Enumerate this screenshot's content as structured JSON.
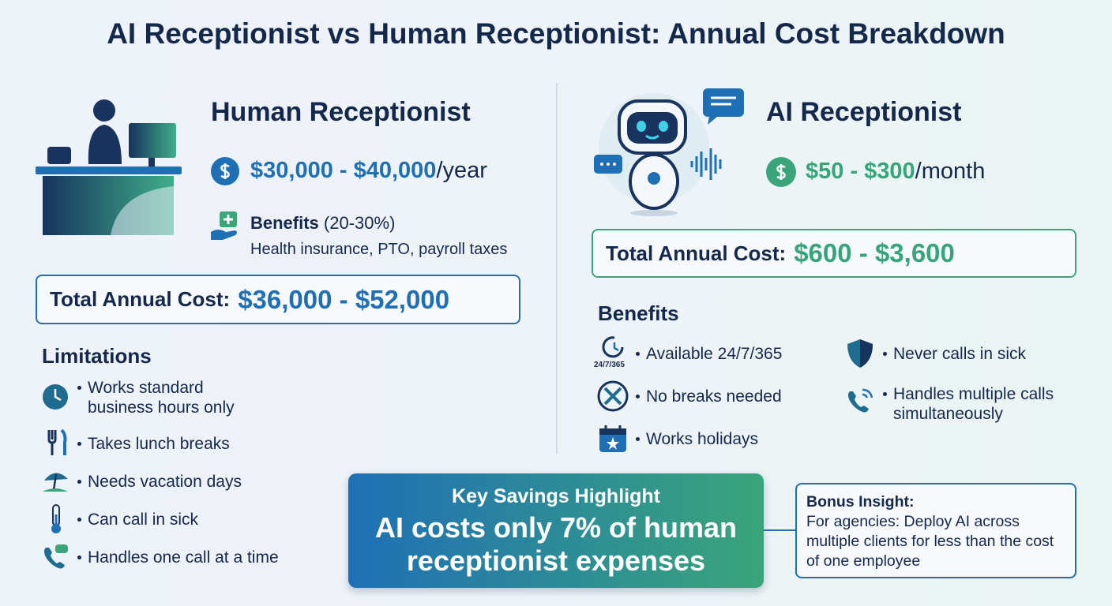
{
  "title": "AI Receptionist vs Human Receptionist: Annual Cost Breakdown",
  "human": {
    "heading": "Human Receptionist",
    "price": {
      "amount": "$30,000 - $40,000",
      "unit": "/year"
    },
    "benefits": {
      "label": "Benefits",
      "range": "(20-30%)",
      "detail": "Health insurance, PTO, payroll taxes"
    },
    "total": {
      "label": "Total Annual Cost:",
      "value": "$36,000 - $52,000"
    },
    "limitations": {
      "heading": "Limitations",
      "items": [
        "Works standard business hours only",
        "Takes lunch breaks",
        "Needs vacation days",
        "Can call in sick",
        "Handles one call at a time"
      ]
    }
  },
  "ai": {
    "heading": "AI Receptionist",
    "price": {
      "amount": "$50 - $300",
      "unit": "/month"
    },
    "total": {
      "label": "Total Annual Cost:",
      "value": "$600 - $3,600"
    },
    "benefits": {
      "heading": "Benefits",
      "icon_label": "24/7/365",
      "items": [
        "Available 24/7/365",
        "No breaks needed",
        "Works holidays",
        "Never calls in sick",
        "Handles multiple calls simultaneously"
      ]
    }
  },
  "highlight": {
    "label": "Key Savings Highlight",
    "text": "AI costs only 7% of human receptionist expenses"
  },
  "insight": {
    "label": "Bonus Insight:",
    "text": "For agencies: Deploy AI across multiple clients for less than the cost of one employee"
  }
}
